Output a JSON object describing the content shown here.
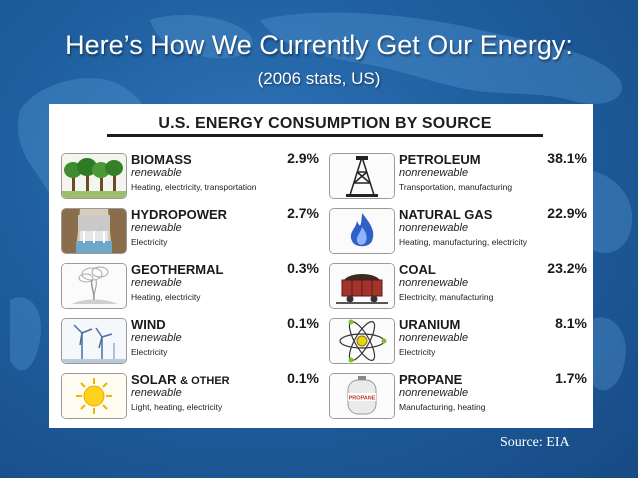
{
  "slide": {
    "title": "Here’s How We Currently Get Our Energy:",
    "subtitle": "(2006 stats, US)",
    "source": "Source: EIA"
  },
  "panel": {
    "title": "U.S. ENERGY CONSUMPTION BY SOURCE"
  },
  "renewable": [
    {
      "name": "BIOMASS",
      "kind": "renewable",
      "uses": "Heating, electricity, transportation",
      "percent": "2.9%",
      "icon": "trees-icon"
    },
    {
      "name": "HYDROPOWER",
      "kind": "renewable",
      "uses": "Electricity",
      "percent": "2.7%",
      "icon": "dam-icon"
    },
    {
      "name": "GEOTHERMAL",
      "kind": "renewable",
      "uses": "Heating, electricity",
      "percent": "0.3%",
      "icon": "geyser-icon"
    },
    {
      "name": "WIND",
      "kind": "renewable",
      "uses": "Electricity",
      "percent": "0.1%",
      "icon": "wind-turbine-icon"
    },
    {
      "name": "SOLAR",
      "name_suffix": "& OTHER",
      "kind": "renewable",
      "uses": "Light, heating, electricity",
      "percent": "0.1%",
      "icon": "sun-icon"
    }
  ],
  "nonrenewable": [
    {
      "name": "PETROLEUM",
      "kind": "nonrenewable",
      "uses": "Transportation, manufacturing",
      "percent": "38.1%",
      "icon": "oil-derrick-icon"
    },
    {
      "name": "NATURAL GAS",
      "kind": "nonrenewable",
      "uses": "Heating, manufacturing, electricity",
      "percent": "22.9%",
      "icon": "flame-icon"
    },
    {
      "name": "COAL",
      "kind": "nonrenewable",
      "uses": "Electricity, manufacturing",
      "percent": "23.2%",
      "icon": "coal-cart-icon"
    },
    {
      "name": "URANIUM",
      "kind": "nonrenewable",
      "uses": "Electricity",
      "percent": "8.1%",
      "icon": "atom-icon"
    },
    {
      "name": "PROPANE",
      "kind": "nonrenewable",
      "uses": "Manufacturing, heating",
      "percent": "1.7%",
      "icon": "propane-tank-icon",
      "tank_label": "PROPANE"
    }
  ],
  "colors": {
    "background": "#1f5f9f",
    "panel": "#ffffff",
    "text": "#1a1a1a"
  }
}
